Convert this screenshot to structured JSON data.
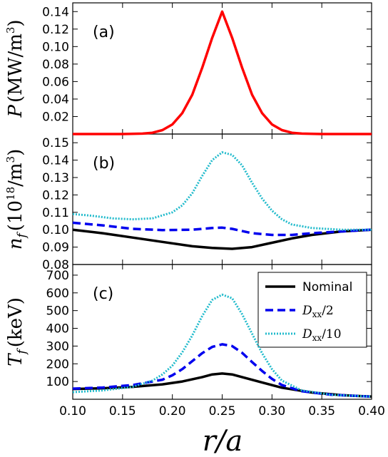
{
  "chart_data": [
    {
      "type": "line",
      "panel_label": "(a)",
      "ylabel": {
        "base": "P",
        "unit": "(MW/m",
        "exp": "3",
        "close": ")"
      },
      "xlim": [
        0.1,
        0.4
      ],
      "ylim": [
        0.0,
        0.15
      ],
      "yticks": [
        "0.02",
        "0.04",
        "0.06",
        "0.08",
        "0.10",
        "0.12",
        "0.14"
      ],
      "series": [
        {
          "color": "#ff0000",
          "style": "solid",
          "x": [
            0.1,
            0.15,
            0.17,
            0.18,
            0.19,
            0.2,
            0.21,
            0.22,
            0.23,
            0.24,
            0.25,
            0.26,
            0.27,
            0.28,
            0.29,
            0.3,
            0.31,
            0.32,
            0.33,
            0.35,
            0.4
          ],
          "y": [
            0.0,
            0.0,
            0.0005,
            0.0015,
            0.0045,
            0.011,
            0.024,
            0.045,
            0.076,
            0.11,
            0.14,
            0.11,
            0.076,
            0.045,
            0.024,
            0.011,
            0.0045,
            0.0015,
            0.0005,
            0.0,
            0.0
          ]
        }
      ]
    },
    {
      "type": "line",
      "panel_label": "(b)",
      "ylabel": {
        "base": "n",
        "sub": "f",
        "unit": "(10",
        "exp": "18",
        "close": "/m",
        "exp2": "3",
        "close2": ")"
      },
      "xlim": [
        0.1,
        0.4
      ],
      "ylim": [
        0.08,
        0.155
      ],
      "yticks": [
        "0.08",
        "0.09",
        "0.10",
        "0.11",
        "0.12",
        "0.13",
        "0.14",
        "0.15"
      ],
      "series": [
        {
          "color": "#000000",
          "style": "solid",
          "x": [
            0.1,
            0.13,
            0.16,
            0.19,
            0.22,
            0.24,
            0.26,
            0.28,
            0.3,
            0.32,
            0.34,
            0.37,
            0.4
          ],
          "y": [
            0.1,
            0.098,
            0.0955,
            0.093,
            0.0905,
            0.0895,
            0.089,
            0.09,
            0.0925,
            0.095,
            0.097,
            0.099,
            0.1
          ]
        },
        {
          "color": "#0000ee",
          "style": "dashed",
          "x": [
            0.1,
            0.13,
            0.16,
            0.19,
            0.22,
            0.24,
            0.25,
            0.26,
            0.28,
            0.3,
            0.32,
            0.34,
            0.37,
            0.4
          ],
          "y": [
            0.104,
            0.1025,
            0.1005,
            0.0998,
            0.1,
            0.101,
            0.1012,
            0.1005,
            0.098,
            0.097,
            0.097,
            0.098,
            0.099,
            0.1
          ]
        },
        {
          "color": "#22bbcc",
          "style": "dotted",
          "x": [
            0.1,
            0.12,
            0.14,
            0.16,
            0.18,
            0.2,
            0.21,
            0.22,
            0.23,
            0.24,
            0.25,
            0.26,
            0.27,
            0.28,
            0.29,
            0.3,
            0.31,
            0.32,
            0.34,
            0.37,
            0.4
          ],
          "y": [
            0.109,
            0.108,
            0.1065,
            0.106,
            0.1065,
            0.11,
            0.114,
            0.121,
            0.131,
            0.14,
            0.1445,
            0.143,
            0.137,
            0.127,
            0.118,
            0.111,
            0.106,
            0.103,
            0.101,
            0.1,
            0.1
          ]
        }
      ]
    },
    {
      "type": "line",
      "panel_label": "(c)",
      "ylabel": {
        "base": "T",
        "sub": "f",
        "unit": "(keV)"
      },
      "xlim": [
        0.1,
        0.4
      ],
      "ylim": [
        0,
        760
      ],
      "yticks": [
        "100",
        "200",
        "300",
        "400",
        "500",
        "600",
        "700"
      ],
      "legend": {
        "position": "top-right",
        "entries": [
          {
            "label": "Nominal",
            "math": false
          },
          {
            "label": "D",
            "sub": "xx",
            "tail": "/2",
            "math": true
          },
          {
            "label": "D",
            "sub": "xx",
            "tail": "/10",
            "math": true
          }
        ]
      },
      "series": [
        {
          "color": "#000000",
          "style": "solid",
          "x": [
            0.1,
            0.13,
            0.16,
            0.19,
            0.21,
            0.23,
            0.24,
            0.25,
            0.26,
            0.27,
            0.29,
            0.31,
            0.34,
            0.37,
            0.4
          ],
          "y": [
            58,
            62,
            70,
            84,
            100,
            125,
            140,
            145,
            140,
            125,
            95,
            65,
            38,
            23,
            15
          ]
        },
        {
          "color": "#0000ee",
          "style": "dashed",
          "x": [
            0.1,
            0.13,
            0.16,
            0.19,
            0.2,
            0.21,
            0.22,
            0.23,
            0.24,
            0.25,
            0.26,
            0.27,
            0.28,
            0.29,
            0.3,
            0.31,
            0.33,
            0.36,
            0.4
          ],
          "y": [
            60,
            66,
            80,
            110,
            135,
            170,
            215,
            260,
            295,
            310,
            300,
            262,
            210,
            160,
            115,
            80,
            45,
            25,
            15
          ]
        },
        {
          "color": "#22bbcc",
          "style": "dotted",
          "x": [
            0.1,
            0.13,
            0.16,
            0.18,
            0.19,
            0.2,
            0.21,
            0.22,
            0.23,
            0.24,
            0.25,
            0.26,
            0.27,
            0.28,
            0.29,
            0.3,
            0.31,
            0.33,
            0.36,
            0.4
          ],
          "y": [
            40,
            50,
            70,
            105,
            140,
            190,
            265,
            360,
            470,
            560,
            590,
            570,
            480,
            370,
            260,
            170,
            105,
            50,
            25,
            15
          ]
        }
      ]
    }
  ],
  "shared_x": {
    "label_base": "r",
    "label_tail": "/a",
    "ticks": [
      "0.10",
      "0.15",
      "0.20",
      "0.25",
      "0.30",
      "0.35",
      "0.40"
    ]
  }
}
